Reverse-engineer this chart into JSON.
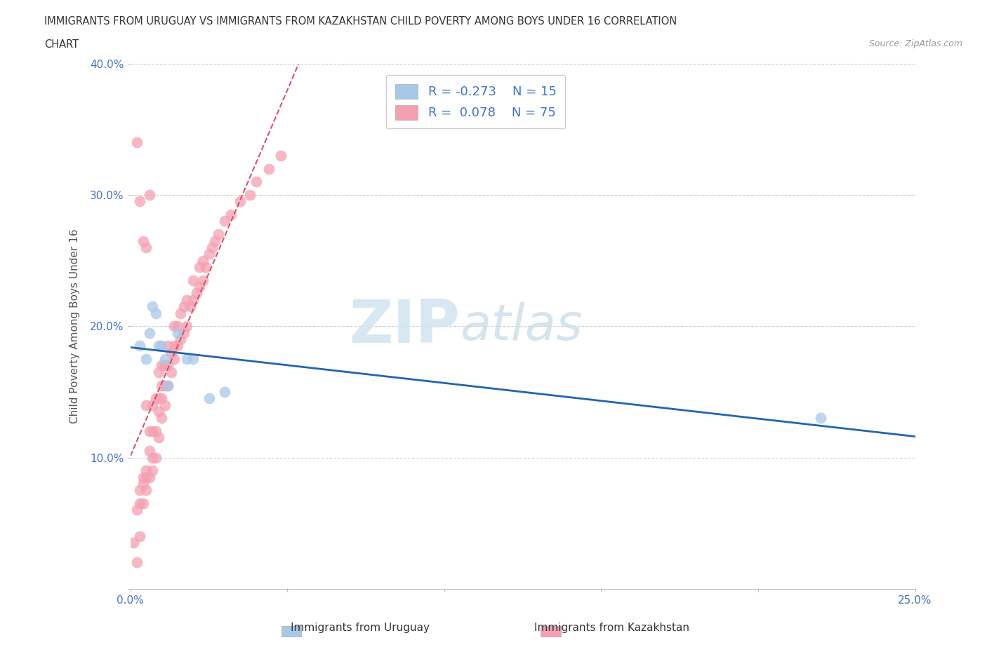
{
  "title_line1": "IMMIGRANTS FROM URUGUAY VS IMMIGRANTS FROM KAZAKHSTAN CHILD POVERTY AMONG BOYS UNDER 16 CORRELATION",
  "title_line2": "CHART",
  "source": "Source: ZipAtlas.com",
  "ylabel": "Child Poverty Among Boys Under 16",
  "legend_label1": "Immigrants from Uruguay",
  "legend_label2": "Immigrants from Kazakhstan",
  "R1": -0.273,
  "N1": 15,
  "R2": 0.078,
  "N2": 75,
  "xlim": [
    0,
    0.25
  ],
  "ylim": [
    0,
    0.4
  ],
  "xticks": [
    0.0,
    0.05,
    0.1,
    0.15,
    0.2,
    0.25
  ],
  "yticks": [
    0.0,
    0.1,
    0.2,
    0.3,
    0.4
  ],
  "color_uruguay": "#a8c8e8",
  "color_kazakhstan": "#f4a0b0",
  "trendline_color_uruguay": "#2166ac",
  "trendline_color_kazakhstan": "#d6546a",
  "watermark_zip": "ZIP",
  "watermark_atlas": "atlas",
  "background_color": "#ffffff",
  "grid_color": "#cccccc",
  "uruguay_x": [
    0.003,
    0.005,
    0.006,
    0.007,
    0.008,
    0.009,
    0.01,
    0.011,
    0.012,
    0.015,
    0.018,
    0.02,
    0.025,
    0.03,
    0.22
  ],
  "uruguay_y": [
    0.185,
    0.175,
    0.195,
    0.215,
    0.21,
    0.185,
    0.185,
    0.175,
    0.155,
    0.195,
    0.175,
    0.175,
    0.145,
    0.15,
    0.13
  ],
  "kazakhstan_x": [
    0.001,
    0.002,
    0.002,
    0.003,
    0.003,
    0.003,
    0.004,
    0.004,
    0.004,
    0.005,
    0.005,
    0.005,
    0.005,
    0.006,
    0.006,
    0.006,
    0.007,
    0.007,
    0.007,
    0.007,
    0.008,
    0.008,
    0.008,
    0.009,
    0.009,
    0.009,
    0.009,
    0.01,
    0.01,
    0.01,
    0.01,
    0.011,
    0.011,
    0.011,
    0.012,
    0.012,
    0.012,
    0.013,
    0.013,
    0.014,
    0.014,
    0.014,
    0.015,
    0.015,
    0.016,
    0.016,
    0.017,
    0.017,
    0.018,
    0.018,
    0.019,
    0.02,
    0.02,
    0.021,
    0.022,
    0.022,
    0.023,
    0.023,
    0.024,
    0.025,
    0.026,
    0.027,
    0.028,
    0.03,
    0.032,
    0.035,
    0.038,
    0.04,
    0.044,
    0.048,
    0.002,
    0.003,
    0.004,
    0.005,
    0.006
  ],
  "kazakhstan_y": [
    0.035,
    0.02,
    0.06,
    0.04,
    0.065,
    0.075,
    0.065,
    0.08,
    0.085,
    0.075,
    0.085,
    0.09,
    0.14,
    0.085,
    0.105,
    0.12,
    0.09,
    0.1,
    0.12,
    0.14,
    0.1,
    0.12,
    0.145,
    0.115,
    0.135,
    0.145,
    0.165,
    0.13,
    0.145,
    0.155,
    0.17,
    0.14,
    0.155,
    0.17,
    0.155,
    0.17,
    0.185,
    0.165,
    0.18,
    0.175,
    0.185,
    0.2,
    0.185,
    0.2,
    0.19,
    0.21,
    0.195,
    0.215,
    0.2,
    0.22,
    0.215,
    0.22,
    0.235,
    0.225,
    0.23,
    0.245,
    0.235,
    0.25,
    0.245,
    0.255,
    0.26,
    0.265,
    0.27,
    0.28,
    0.285,
    0.295,
    0.3,
    0.31,
    0.32,
    0.33,
    0.34,
    0.295,
    0.265,
    0.26,
    0.3
  ]
}
